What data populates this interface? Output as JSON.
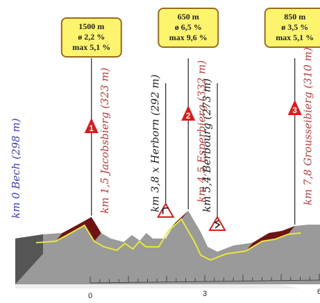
{
  "colors": {
    "start": "#3b3bc4",
    "climb": "#c23a36",
    "town": "#1e1e1e",
    "climb_fill": "#6e1414",
    "flat_fill": "#9a9a9a",
    "base_fill": "#d6d6d6",
    "edge_fill": "#555555",
    "ridge_line": "#e8e83a",
    "box_fill": "#fbf46c",
    "box_stroke": "#9a6a1a",
    "marker_red": "#e01818"
  },
  "chart_data": {
    "type": "area",
    "x_unit": "km",
    "x_ticks": [
      {
        "value": 0,
        "label": "0"
      },
      {
        "value": 3,
        "label": "3"
      },
      {
        "value": 6,
        "label": "6"
      }
    ],
    "profile": [
      {
        "km": 0.0,
        "elev": 298
      },
      {
        "km": 0.6,
        "elev": 300
      },
      {
        "km": 1.0,
        "elev": 310
      },
      {
        "km": 1.5,
        "elev": 323
      },
      {
        "km": 1.8,
        "elev": 300
      },
      {
        "km": 2.1,
        "elev": 292
      },
      {
        "km": 2.5,
        "elev": 287
      },
      {
        "km": 2.75,
        "elev": 297
      },
      {
        "km": 3.0,
        "elev": 289
      },
      {
        "km": 3.2,
        "elev": 300
      },
      {
        "km": 3.4,
        "elev": 292
      },
      {
        "km": 3.8,
        "elev": 292
      },
      {
        "km": 4.1,
        "elev": 315
      },
      {
        "km": 4.5,
        "elev": 332
      },
      {
        "km": 4.9,
        "elev": 300
      },
      {
        "km": 5.1,
        "elev": 280
      },
      {
        "km": 5.4,
        "elev": 273
      },
      {
        "km": 5.9,
        "elev": 282
      },
      {
        "km": 6.5,
        "elev": 286
      },
      {
        "km": 7.0,
        "elev": 300
      },
      {
        "km": 7.4,
        "elev": 303
      },
      {
        "km": 7.8,
        "elev": 310
      },
      {
        "km": 8.2,
        "elev": 312
      }
    ],
    "climbs": [
      {
        "id": "1",
        "from_km": 0.6,
        "to_km": 1.5,
        "length": "1500 m",
        "avg": "ø 2,2 %",
        "max": "max 5,1 %"
      },
      {
        "id": "2",
        "from_km": 4.0,
        "to_km": 4.5,
        "length": "650 m",
        "avg": "ø 6,5 %",
        "max": "max 9,6 %"
      },
      {
        "id": "3",
        "from_km": 6.5,
        "to_km": 7.8,
        "length": "850 m",
        "avg": "ø 3,5 %",
        "max": "max 5,1 %"
      }
    ],
    "waypoints": [
      {
        "name": "start",
        "km": 0.0,
        "elev": 298,
        "label": "km 0 Bech (298 m)",
        "kind": "start"
      },
      {
        "name": "jacobsbierg",
        "km": 1.5,
        "elev": 323,
        "label": "km 1,5 Jacobsbierg (323 m)",
        "kind": "climb",
        "climb": "1"
      },
      {
        "name": "herborn",
        "km": 3.8,
        "elev": 292,
        "label": "km 3,8 x Herborn (292 m)",
        "kind": "town",
        "sign": "turn"
      },
      {
        "name": "esperbierg",
        "km": 4.5,
        "elev": 332,
        "label": "km 4,5 Esperbierg (332 m)",
        "kind": "climb",
        "climb": "2"
      },
      {
        "name": "berbourg",
        "km": 5.4,
        "elev": 273,
        "label": "km 5,4 Berbourg (273 m)",
        "kind": "town",
        "sign": "winding"
      },
      {
        "name": "grousseibierg",
        "km": 7.8,
        "elev": 310,
        "label": "km 7,8 Grousseibierg (310 m)",
        "kind": "climb",
        "climb": "3"
      }
    ]
  }
}
